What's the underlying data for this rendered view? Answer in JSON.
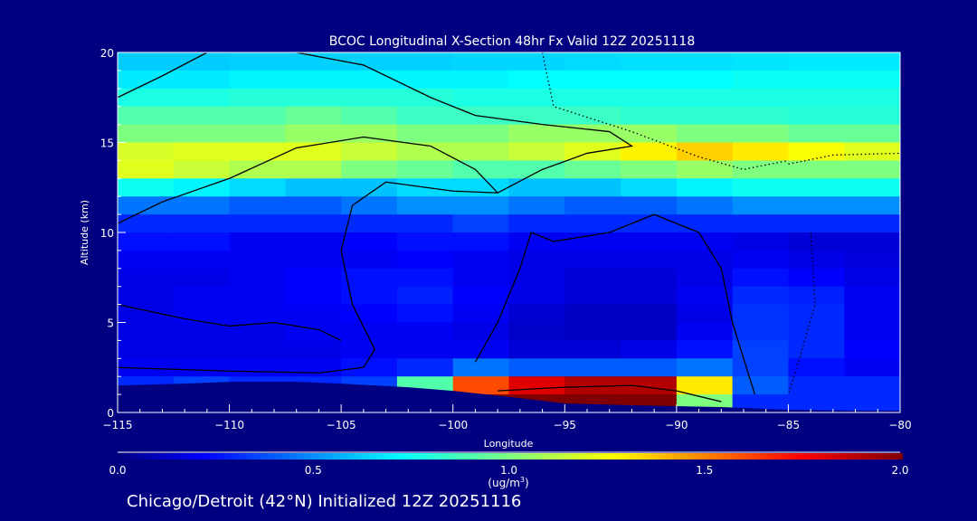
{
  "chart_data": {
    "type": "heatmap",
    "title": "BCOC Longitudinal X-Section 48hr  Fx Valid 12Z 20251118",
    "xlabel": "Longitude",
    "ylabel": "Altitude (km)",
    "xlim": [
      -115,
      -80
    ],
    "ylim": [
      0,
      20
    ],
    "xticks": [
      -115,
      -110,
      -105,
      -100,
      -95,
      -90,
      -85,
      -80
    ],
    "xtick_labels": [
      "−115",
      "−110",
      "−105",
      "−100",
      "−95",
      "−90",
      "−85",
      "−80"
    ],
    "yticks": [
      0,
      5,
      10,
      15,
      20
    ],
    "ytick_labels": [
      "0",
      "5",
      "10",
      "15",
      "20"
    ],
    "colorbar": {
      "range": [
        0.0,
        2.0
      ],
      "ticks": [
        "0.0",
        "0.5",
        "1.0",
        "1.5",
        "2.0"
      ],
      "units_prefix": "(ug/m",
      "units_sup": "3",
      "units_suffix": ")"
    },
    "footer": "Chicago/Detroit (42°N) Initialized 12Z 20251116",
    "grid_lon_edges": [
      -115,
      -112.5,
      -110,
      -107.5,
      -105,
      -102.5,
      -100,
      -97.5,
      -95,
      -92.5,
      -90,
      -87.5,
      -85,
      -82.5,
      -80
    ],
    "grid_alt_edges_top_down": [
      20,
      19,
      18,
      17,
      16,
      15,
      14,
      13,
      12,
      11,
      10,
      9,
      8,
      7,
      6,
      5,
      4,
      3,
      2,
      1,
      0
    ],
    "values_top_down": [
      [
        0.62,
        0.62,
        0.63,
        0.63,
        0.63,
        0.63,
        0.64,
        0.64,
        0.65,
        0.66,
        0.66,
        0.67,
        0.68,
        0.68
      ],
      [
        0.68,
        0.68,
        0.7,
        0.7,
        0.7,
        0.7,
        0.7,
        0.72,
        0.72,
        0.72,
        0.72,
        0.74,
        0.74,
        0.74
      ],
      [
        0.78,
        0.78,
        0.8,
        0.8,
        0.8,
        0.8,
        0.78,
        0.78,
        0.78,
        0.78,
        0.78,
        0.78,
        0.78,
        0.78
      ],
      [
        0.9,
        0.9,
        0.9,
        0.95,
        0.9,
        0.85,
        0.85,
        0.85,
        0.85,
        0.82,
        0.82,
        0.82,
        0.8,
        0.8
      ],
      [
        1.0,
        1.0,
        1.0,
        1.05,
        1.05,
        1.0,
        1.0,
        1.05,
        1.05,
        1.05,
        1.0,
        1.0,
        0.95,
        0.95
      ],
      [
        1.18,
        1.2,
        1.2,
        1.2,
        1.15,
        1.1,
        1.1,
        1.15,
        1.2,
        1.28,
        1.35,
        1.3,
        1.25,
        1.2
      ],
      [
        1.2,
        1.15,
        1.1,
        1.1,
        1.0,
        0.95,
        0.9,
        0.9,
        0.95,
        1.0,
        1.05,
        1.0,
        1.0,
        1.0
      ],
      [
        0.75,
        0.7,
        0.65,
        0.6,
        0.6,
        0.65,
        0.65,
        0.6,
        0.6,
        0.65,
        0.7,
        0.75,
        0.75,
        0.75
      ],
      [
        0.45,
        0.45,
        0.4,
        0.4,
        0.45,
        0.5,
        0.5,
        0.45,
        0.4,
        0.4,
        0.45,
        0.5,
        0.5,
        0.5
      ],
      [
        0.3,
        0.3,
        0.3,
        0.3,
        0.3,
        0.3,
        0.35,
        0.3,
        0.3,
        0.3,
        0.3,
        0.3,
        0.3,
        0.3
      ],
      [
        0.25,
        0.25,
        0.2,
        0.2,
        0.22,
        0.25,
        0.25,
        0.2,
        0.2,
        0.2,
        0.2,
        0.18,
        0.15,
        0.15
      ],
      [
        0.2,
        0.2,
        0.2,
        0.2,
        0.2,
        0.22,
        0.2,
        0.18,
        0.18,
        0.18,
        0.18,
        0.2,
        0.18,
        0.16
      ],
      [
        0.18,
        0.18,
        0.2,
        0.22,
        0.25,
        0.25,
        0.2,
        0.18,
        0.15,
        0.15,
        0.18,
        0.25,
        0.22,
        0.18
      ],
      [
        0.18,
        0.2,
        0.2,
        0.22,
        0.25,
        0.28,
        0.22,
        0.18,
        0.15,
        0.15,
        0.2,
        0.3,
        0.28,
        0.2
      ],
      [
        0.18,
        0.2,
        0.2,
        0.2,
        0.22,
        0.25,
        0.2,
        0.14,
        0.12,
        0.12,
        0.18,
        0.32,
        0.3,
        0.2
      ],
      [
        0.18,
        0.18,
        0.18,
        0.2,
        0.2,
        0.2,
        0.18,
        0.13,
        0.12,
        0.12,
        0.2,
        0.32,
        0.3,
        0.2
      ],
      [
        0.18,
        0.18,
        0.18,
        0.18,
        0.2,
        0.2,
        0.2,
        0.15,
        0.15,
        0.18,
        0.25,
        0.35,
        0.3,
        0.22
      ],
      [
        0.2,
        0.2,
        0.2,
        0.2,
        0.25,
        0.3,
        0.45,
        0.4,
        0.4,
        0.4,
        0.45,
        0.35,
        0.25,
        0.2
      ],
      [
        0.3,
        0.35,
        0.3,
        0.3,
        0.35,
        0.9,
        1.6,
        1.8,
        1.9,
        1.9,
        1.3,
        0.4,
        0.3,
        0.3
      ],
      [
        0.3,
        0.3,
        0.3,
        0.3,
        0.3,
        0.4,
        2.0,
        2.0,
        2.0,
        2.0,
        1.0,
        0.3,
        0.3,
        0.3
      ]
    ],
    "terrain": {
      "lon": [
        -115,
        -112,
        -110,
        -107,
        -105,
        -102,
        -100,
        -97,
        -95,
        -92,
        -90,
        -88,
        -85,
        -82,
        -80
      ],
      "alt_km": [
        1.5,
        1.6,
        1.7,
        1.7,
        1.6,
        1.4,
        1.2,
        0.8,
        0.5,
        0.4,
        0.35,
        0.3,
        0.15,
        0.1,
        0.1
      ]
    },
    "contours": [
      {
        "level": "0",
        "style": "solid",
        "points": [
          [
            -115,
            17.5
          ],
          [
            -113,
            18.7
          ],
          [
            -111,
            20
          ]
        ]
      },
      {
        "level": "0",
        "style": "solid",
        "points": [
          [
            -107,
            20
          ],
          [
            -104,
            19.3
          ],
          [
            -101,
            17.5
          ],
          [
            -99,
            16.5
          ],
          [
            -96,
            16
          ],
          [
            -93,
            15.6
          ],
          [
            -92,
            14.8
          ],
          [
            -94,
            14.4
          ],
          [
            -96,
            13.5
          ],
          [
            -98,
            12.2
          ],
          [
            -100,
            12.3
          ],
          [
            -103,
            12.8
          ],
          [
            -104.5,
            11.5
          ],
          [
            -105,
            9
          ],
          [
            -104.5,
            6
          ],
          [
            -103.5,
            3.5
          ],
          [
            -104,
            2.5
          ]
        ]
      },
      {
        "level": "10",
        "style": "solid",
        "points": [
          [
            -115,
            10.5
          ],
          [
            -113,
            11.7
          ],
          [
            -110,
            13
          ],
          [
            -107,
            14.7
          ],
          [
            -104,
            15.3
          ],
          [
            -101,
            14.8
          ],
          [
            -99,
            13.5
          ],
          [
            -98,
            12.2
          ]
        ]
      },
      {
        "level": "0",
        "style": "solid",
        "points": [
          [
            -115,
            6
          ],
          [
            -112,
            5.2
          ],
          [
            -110,
            4.8
          ],
          [
            -108,
            5
          ],
          [
            -106,
            4.6
          ],
          [
            -105,
            4
          ]
        ]
      },
      {
        "level": "0",
        "style": "solid",
        "points": [
          [
            -115,
            2.5
          ],
          [
            -110,
            2.3
          ],
          [
            -106,
            2.2
          ],
          [
            -104,
            2.5
          ]
        ]
      },
      {
        "level": "0",
        "style": "solid",
        "points": [
          [
            -99,
            2.8
          ],
          [
            -98,
            5
          ],
          [
            -97,
            8
          ],
          [
            -96.5,
            10
          ],
          [
            -95.5,
            9.5
          ],
          [
            -93,
            10
          ],
          [
            -91,
            11
          ],
          [
            -89,
            10
          ],
          [
            -88,
            8
          ],
          [
            -87.5,
            5
          ],
          [
            -87,
            3
          ],
          [
            -86.5,
            1
          ]
        ]
      },
      {
        "level": "0",
        "style": "solid",
        "points": [
          [
            -98,
            1.2
          ],
          [
            -95,
            1.4
          ],
          [
            -92,
            1.5
          ],
          [
            -90,
            1.2
          ],
          [
            -88,
            0.6
          ]
        ]
      },
      {
        "level": "-10",
        "style": "dotted",
        "points": [
          [
            -96,
            20
          ],
          [
            -95.5,
            17
          ],
          [
            -92,
            15.6
          ],
          [
            -89,
            14.2
          ],
          [
            -87,
            13.5
          ],
          [
            -85,
            14
          ]
        ]
      },
      {
        "level": "-10",
        "style": "dotted",
        "points": [
          [
            -85,
            13.8
          ],
          [
            -83,
            14.3
          ],
          [
            -80,
            14.4
          ]
        ]
      },
      {
        "level": "0",
        "style": "dotted",
        "points": [
          [
            -84,
            10
          ],
          [
            -83.8,
            6
          ],
          [
            -84.5,
            3
          ],
          [
            -85,
            1
          ]
        ]
      }
    ]
  }
}
